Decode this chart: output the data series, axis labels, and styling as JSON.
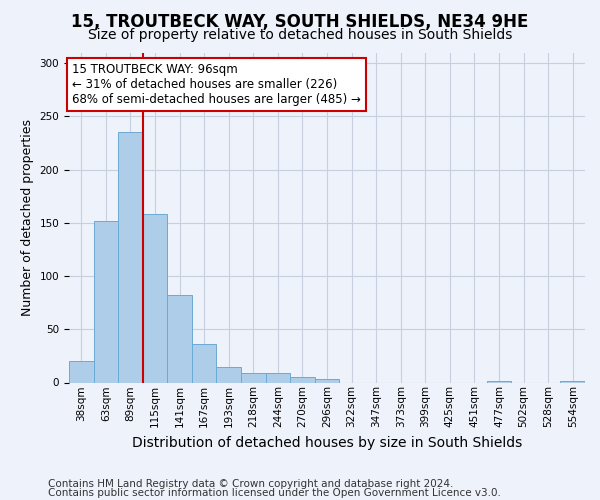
{
  "title": "15, TROUTBECK WAY, SOUTH SHIELDS, NE34 9HE",
  "subtitle": "Size of property relative to detached houses in South Shields",
  "xlabel": "Distribution of detached houses by size in South Shields",
  "ylabel": "Number of detached properties",
  "footer_line1": "Contains HM Land Registry data © Crown copyright and database right 2024.",
  "footer_line2": "Contains public sector information licensed under the Open Government Licence v3.0.",
  "bar_labels": [
    "38sqm",
    "63sqm",
    "89sqm",
    "115sqm",
    "141sqm",
    "167sqm",
    "193sqm",
    "218sqm",
    "244sqm",
    "270sqm",
    "296sqm",
    "322sqm",
    "347sqm",
    "373sqm",
    "399sqm",
    "425sqm",
    "451sqm",
    "477sqm",
    "502sqm",
    "528sqm",
    "554sqm"
  ],
  "bar_values": [
    20,
    152,
    235,
    158,
    82,
    36,
    15,
    9,
    9,
    5,
    3,
    0,
    0,
    0,
    0,
    0,
    0,
    1,
    0,
    0,
    1
  ],
  "bar_color": "#aecde8",
  "bar_edge_color": "#6aaad4",
  "ylim": [
    0,
    310
  ],
  "yticks": [
    0,
    50,
    100,
    150,
    200,
    250,
    300
  ],
  "vline_color": "#cc0000",
  "vline_bar_index": 2,
  "annotation_title": "15 TROUTBECK WAY: 96sqm",
  "annotation_line1": "← 31% of detached houses are smaller (226)",
  "annotation_line2": "68% of semi-detached houses are larger (485) →",
  "annotation_box_color": "#ffffff",
  "annotation_box_edge": "#cc0000",
  "background_color": "#eef2fa",
  "grid_color": "#c8d0e0",
  "title_fontsize": 12,
  "subtitle_fontsize": 10,
  "xlabel_fontsize": 10,
  "ylabel_fontsize": 9,
  "tick_fontsize": 7.5,
  "footer_fontsize": 7.5
}
